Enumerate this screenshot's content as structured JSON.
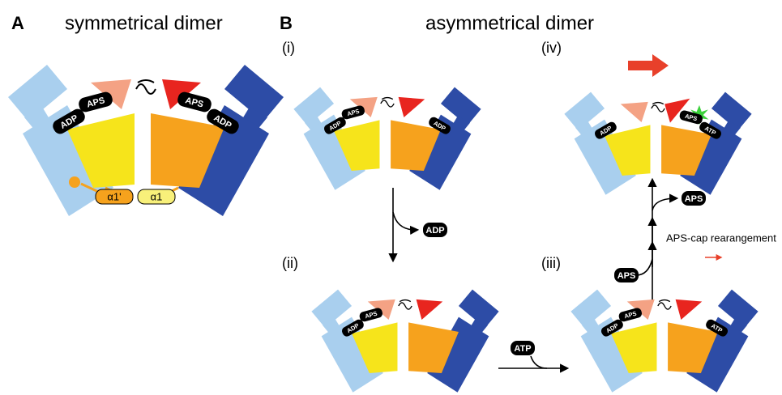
{
  "panel_a": {
    "letter": "A",
    "title": "symmetrical dimer",
    "tags": [
      "ADP",
      "APS",
      "APS",
      "ADP"
    ],
    "helices": [
      "α1'",
      "α1"
    ]
  },
  "panel_b": {
    "letter": "B",
    "title": "asymmetrical dimer",
    "states": [
      {
        "label": "(i)",
        "tags": [
          "ADP",
          "APS",
          "ADP"
        ]
      },
      {
        "label": "(ii)",
        "tags": [
          "ADP",
          "APS"
        ]
      },
      {
        "label": "(iii)",
        "tags": [
          "ADP",
          "APS",
          "ATP"
        ]
      },
      {
        "label": "(iv)",
        "tags": [
          "ADP",
          "APS",
          "ATP"
        ]
      }
    ],
    "released_adp": "ADP",
    "bound_atp": "ATP",
    "bound_aps": "APS",
    "released_aps": "APS",
    "annotation": "APS-cap rearangement"
  }
}
